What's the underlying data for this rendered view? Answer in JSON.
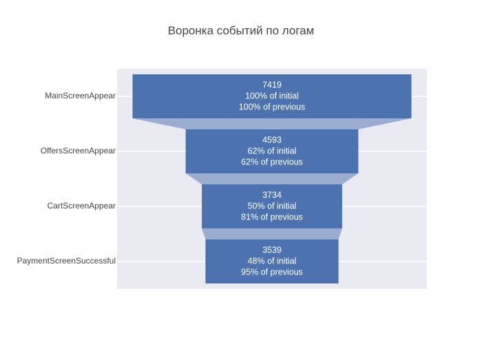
{
  "chart_data": {
    "type": "funnel",
    "title": "Воронка событий по логам",
    "stages": [
      {
        "label": "MainScreenAppear",
        "value": 7419,
        "pct_initial": "100% of initial",
        "pct_previous": "100% of previous"
      },
      {
        "label": "OffersScreenAppear",
        "value": 4593,
        "pct_initial": "62% of initial",
        "pct_previous": "62% of previous"
      },
      {
        "label": "CartScreenAppear",
        "value": 3734,
        "pct_initial": "50% of initial",
        "pct_previous": "81% of previous"
      },
      {
        "label": "PaymentScreenSuccessful",
        "value": 3539,
        "pct_initial": "48% of initial",
        "pct_previous": "95% of previous"
      }
    ],
    "colors": {
      "bar": "#4c72b0",
      "connector": "#9aadd1",
      "plot_bg": "#eaeaf2",
      "grid": "#ffffff"
    }
  }
}
